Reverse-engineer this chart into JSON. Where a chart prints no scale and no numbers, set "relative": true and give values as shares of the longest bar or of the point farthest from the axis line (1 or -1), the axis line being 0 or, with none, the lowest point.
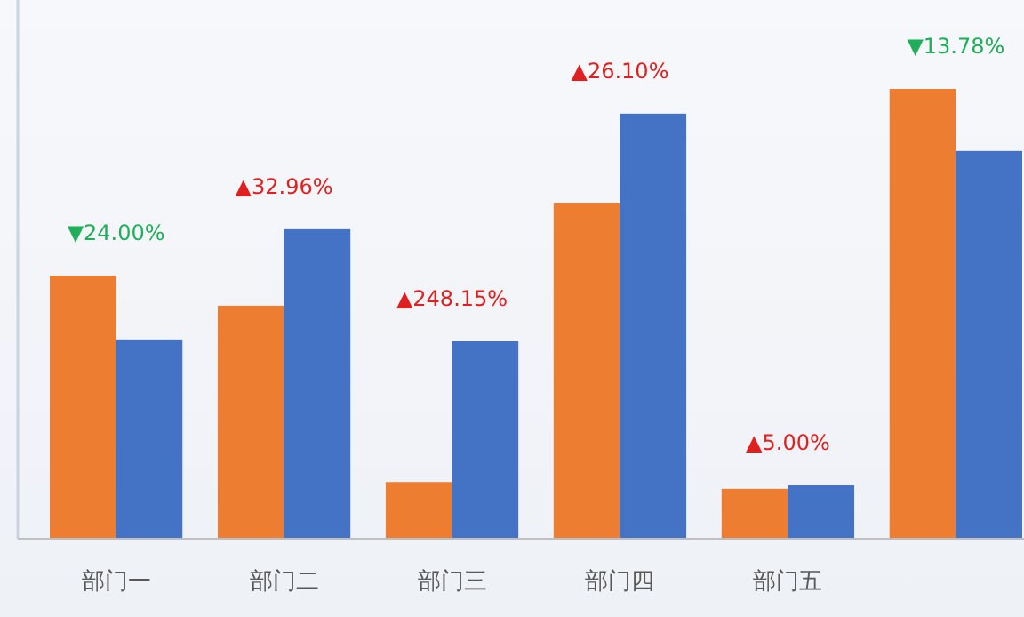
{
  "chart_data": {
    "type": "bar",
    "relative": true,
    "categories": [
      "部门一",
      "部门二",
      "部门三",
      "部门四",
      "部门五",
      null
    ],
    "series": [
      {
        "color": "#ed7d31",
        "values": [
          0.585,
          0.518,
          0.126,
          0.747,
          0.111,
          1
        ]
      },
      {
        "color": "#4472c4",
        "values": [
          0.443,
          0.688,
          0.439,
          0.945,
          0.119,
          0.862
        ]
      }
    ],
    "annotations": [
      "▼24.00%",
      "▲32.96%",
      "▲248.15%",
      "▲26.10%",
      "▲5.00%",
      "▼13.78%"
    ],
    "grid": false
  }
}
